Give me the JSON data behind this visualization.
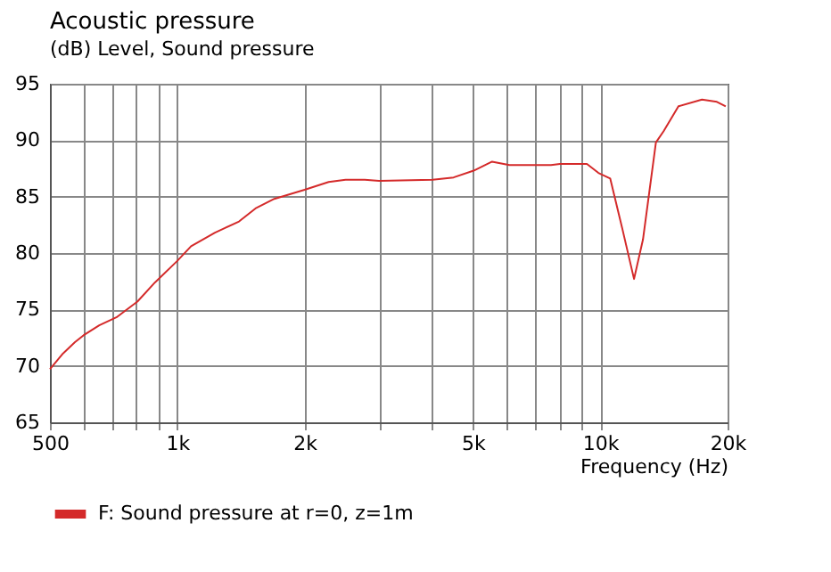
{
  "chart_data": {
    "type": "line",
    "title": "Acoustic pressure",
    "subtitle": "(dB)  Level, Sound pressure",
    "xlabel": "Frequency  (Hz)",
    "log": "x",
    "grid": true,
    "legend": "bottom",
    "marker": "none",
    "line_style": "solid",
    "xlim": [
      500,
      20000
    ],
    "ylim": [
      65,
      95
    ],
    "xticks": [
      500,
      {
        "value": 600,
        "label": null
      },
      {
        "value": 700,
        "label": null
      },
      {
        "value": 800,
        "label": null
      },
      {
        "value": 900,
        "label": null
      },
      {
        "value": 1000,
        "label": "1k"
      },
      {
        "value": 2000,
        "label": "2k"
      },
      {
        "value": 3000,
        "label": null
      },
      {
        "value": 4000,
        "label": null
      },
      {
        "value": 5000,
        "label": "5k"
      },
      {
        "value": 6000,
        "label": null
      },
      {
        "value": 7000,
        "label": null
      },
      {
        "value": 8000,
        "label": null
      },
      {
        "value": 9000,
        "label": null
      },
      {
        "value": 10000,
        "label": "10k"
      },
      {
        "value": 20000,
        "label": "20k"
      }
    ],
    "yticks": [
      65,
      70,
      75,
      80,
      85,
      90,
      95
    ],
    "series": [
      {
        "name": "F: Sound pressure at r=0, z=1m",
        "color": "#d42a2a",
        "x": [
          500,
          537,
          573,
          600,
          654,
          718,
          805,
          886,
          1000,
          1078,
          1228,
          1400,
          1538,
          1696,
          2000,
          2280,
          2500,
          2775,
          3000,
          4014,
          4500,
          5020,
          5550,
          6100,
          7650,
          8030,
          9300,
          9900,
          10560,
          11270,
          12020,
          12620,
          13540,
          14120,
          15310,
          17400,
          18870,
          19800
        ],
        "values": [
          69.7,
          71.1,
          72.1,
          72.7,
          73.6,
          74.3,
          75.7,
          77.4,
          79.3,
          80.6,
          81.8,
          82.8,
          84.0,
          84.8,
          85.6,
          86.3,
          86.5,
          86.5,
          86.4,
          86.5,
          86.7,
          87.3,
          88.1,
          87.8,
          87.8,
          87.9,
          87.9,
          87.1,
          86.6,
          82.2,
          77.7,
          81.2,
          89.8,
          90.8,
          93.0,
          93.6,
          93.4,
          93.0
        ]
      }
    ]
  }
}
